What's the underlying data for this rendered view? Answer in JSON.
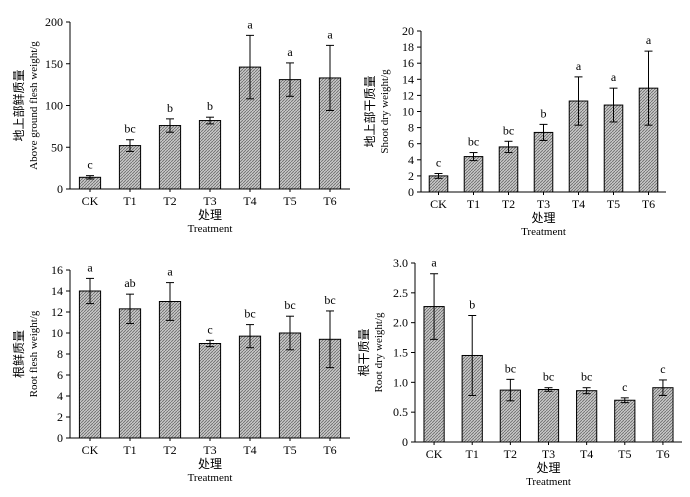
{
  "chart_data": [
    {
      "type": "bar",
      "categories": [
        "CK",
        "T1",
        "T2",
        "T3",
        "T4",
        "T5",
        "T6"
      ],
      "values": [
        14,
        52,
        76,
        82,
        146,
        131,
        133
      ],
      "errors": [
        2,
        7,
        8,
        4,
        38,
        20,
        39
      ],
      "letters": [
        "c",
        "bc",
        "b",
        "b",
        "a",
        "a",
        "a"
      ],
      "ylabel": [
        "地上部鲜质量",
        "Above ground flesh weight/g"
      ],
      "xlabel": [
        "处理",
        "Treatment"
      ],
      "ylim": [
        0,
        200
      ],
      "yticks": [
        "0",
        "50",
        "100",
        "150",
        "200"
      ],
      "grid": false,
      "legend": "none"
    },
    {
      "type": "bar",
      "categories": [
        "CK",
        "T1",
        "T2",
        "T3",
        "T4",
        "T5",
        "T6"
      ],
      "values": [
        2.0,
        4.4,
        5.6,
        7.4,
        11.3,
        10.8,
        12.9
      ],
      "errors": [
        0.3,
        0.5,
        0.7,
        1.0,
        3.0,
        2.1,
        4.6
      ],
      "letters": [
        "c",
        "bc",
        "bc",
        "b",
        "a",
        "a",
        "a"
      ],
      "ylabel": [
        "地上部干质量",
        "Shoot dry weight/g"
      ],
      "xlabel": [
        "处理",
        "Treatment"
      ],
      "ylim": [
        0,
        20
      ],
      "yticks": [
        "0",
        "2",
        "4",
        "6",
        "8",
        "10",
        "12",
        "14",
        "16",
        "18",
        "20"
      ],
      "grid": false,
      "legend": "none"
    },
    {
      "type": "bar",
      "categories": [
        "CK",
        "T1",
        "T2",
        "T3",
        "T4",
        "T5",
        "T6"
      ],
      "values": [
        14.0,
        12.3,
        13.0,
        9.0,
        9.7,
        10.0,
        9.4
      ],
      "errors": [
        1.2,
        1.4,
        1.8,
        0.3,
        1.1,
        1.6,
        2.7
      ],
      "letters": [
        "a",
        "ab",
        "a",
        "c",
        "bc",
        "bc",
        "bc"
      ],
      "ylabel": [
        "根鲜质量",
        "Root flesh weight/g"
      ],
      "xlabel": [
        "处理",
        "Treatment"
      ],
      "ylim": [
        0,
        16
      ],
      "yticks": [
        "0",
        "2",
        "4",
        "6",
        "8",
        "10",
        "12",
        "14",
        "16"
      ],
      "grid": false,
      "legend": "none"
    },
    {
      "type": "bar",
      "categories": [
        "CK",
        "T1",
        "T2",
        "T3",
        "T4",
        "T5",
        "T6"
      ],
      "values": [
        2.27,
        1.45,
        0.87,
        0.88,
        0.86,
        0.7,
        0.91
      ],
      "errors": [
        0.55,
        0.67,
        0.18,
        0.03,
        0.05,
        0.04,
        0.13
      ],
      "letters": [
        "a",
        "b",
        "bc",
        "bc",
        "bc",
        "c",
        "c"
      ],
      "ylabel": [
        "根干质量",
        "Root dry weight/g"
      ],
      "xlabel": [
        "处理",
        "Treatment"
      ],
      "ylim": [
        0,
        3.0
      ],
      "yticks": [
        "0",
        "0.5",
        "1.0",
        "1.5",
        "2.0",
        "2.5",
        "3.0"
      ],
      "grid": false,
      "legend": "none"
    }
  ]
}
